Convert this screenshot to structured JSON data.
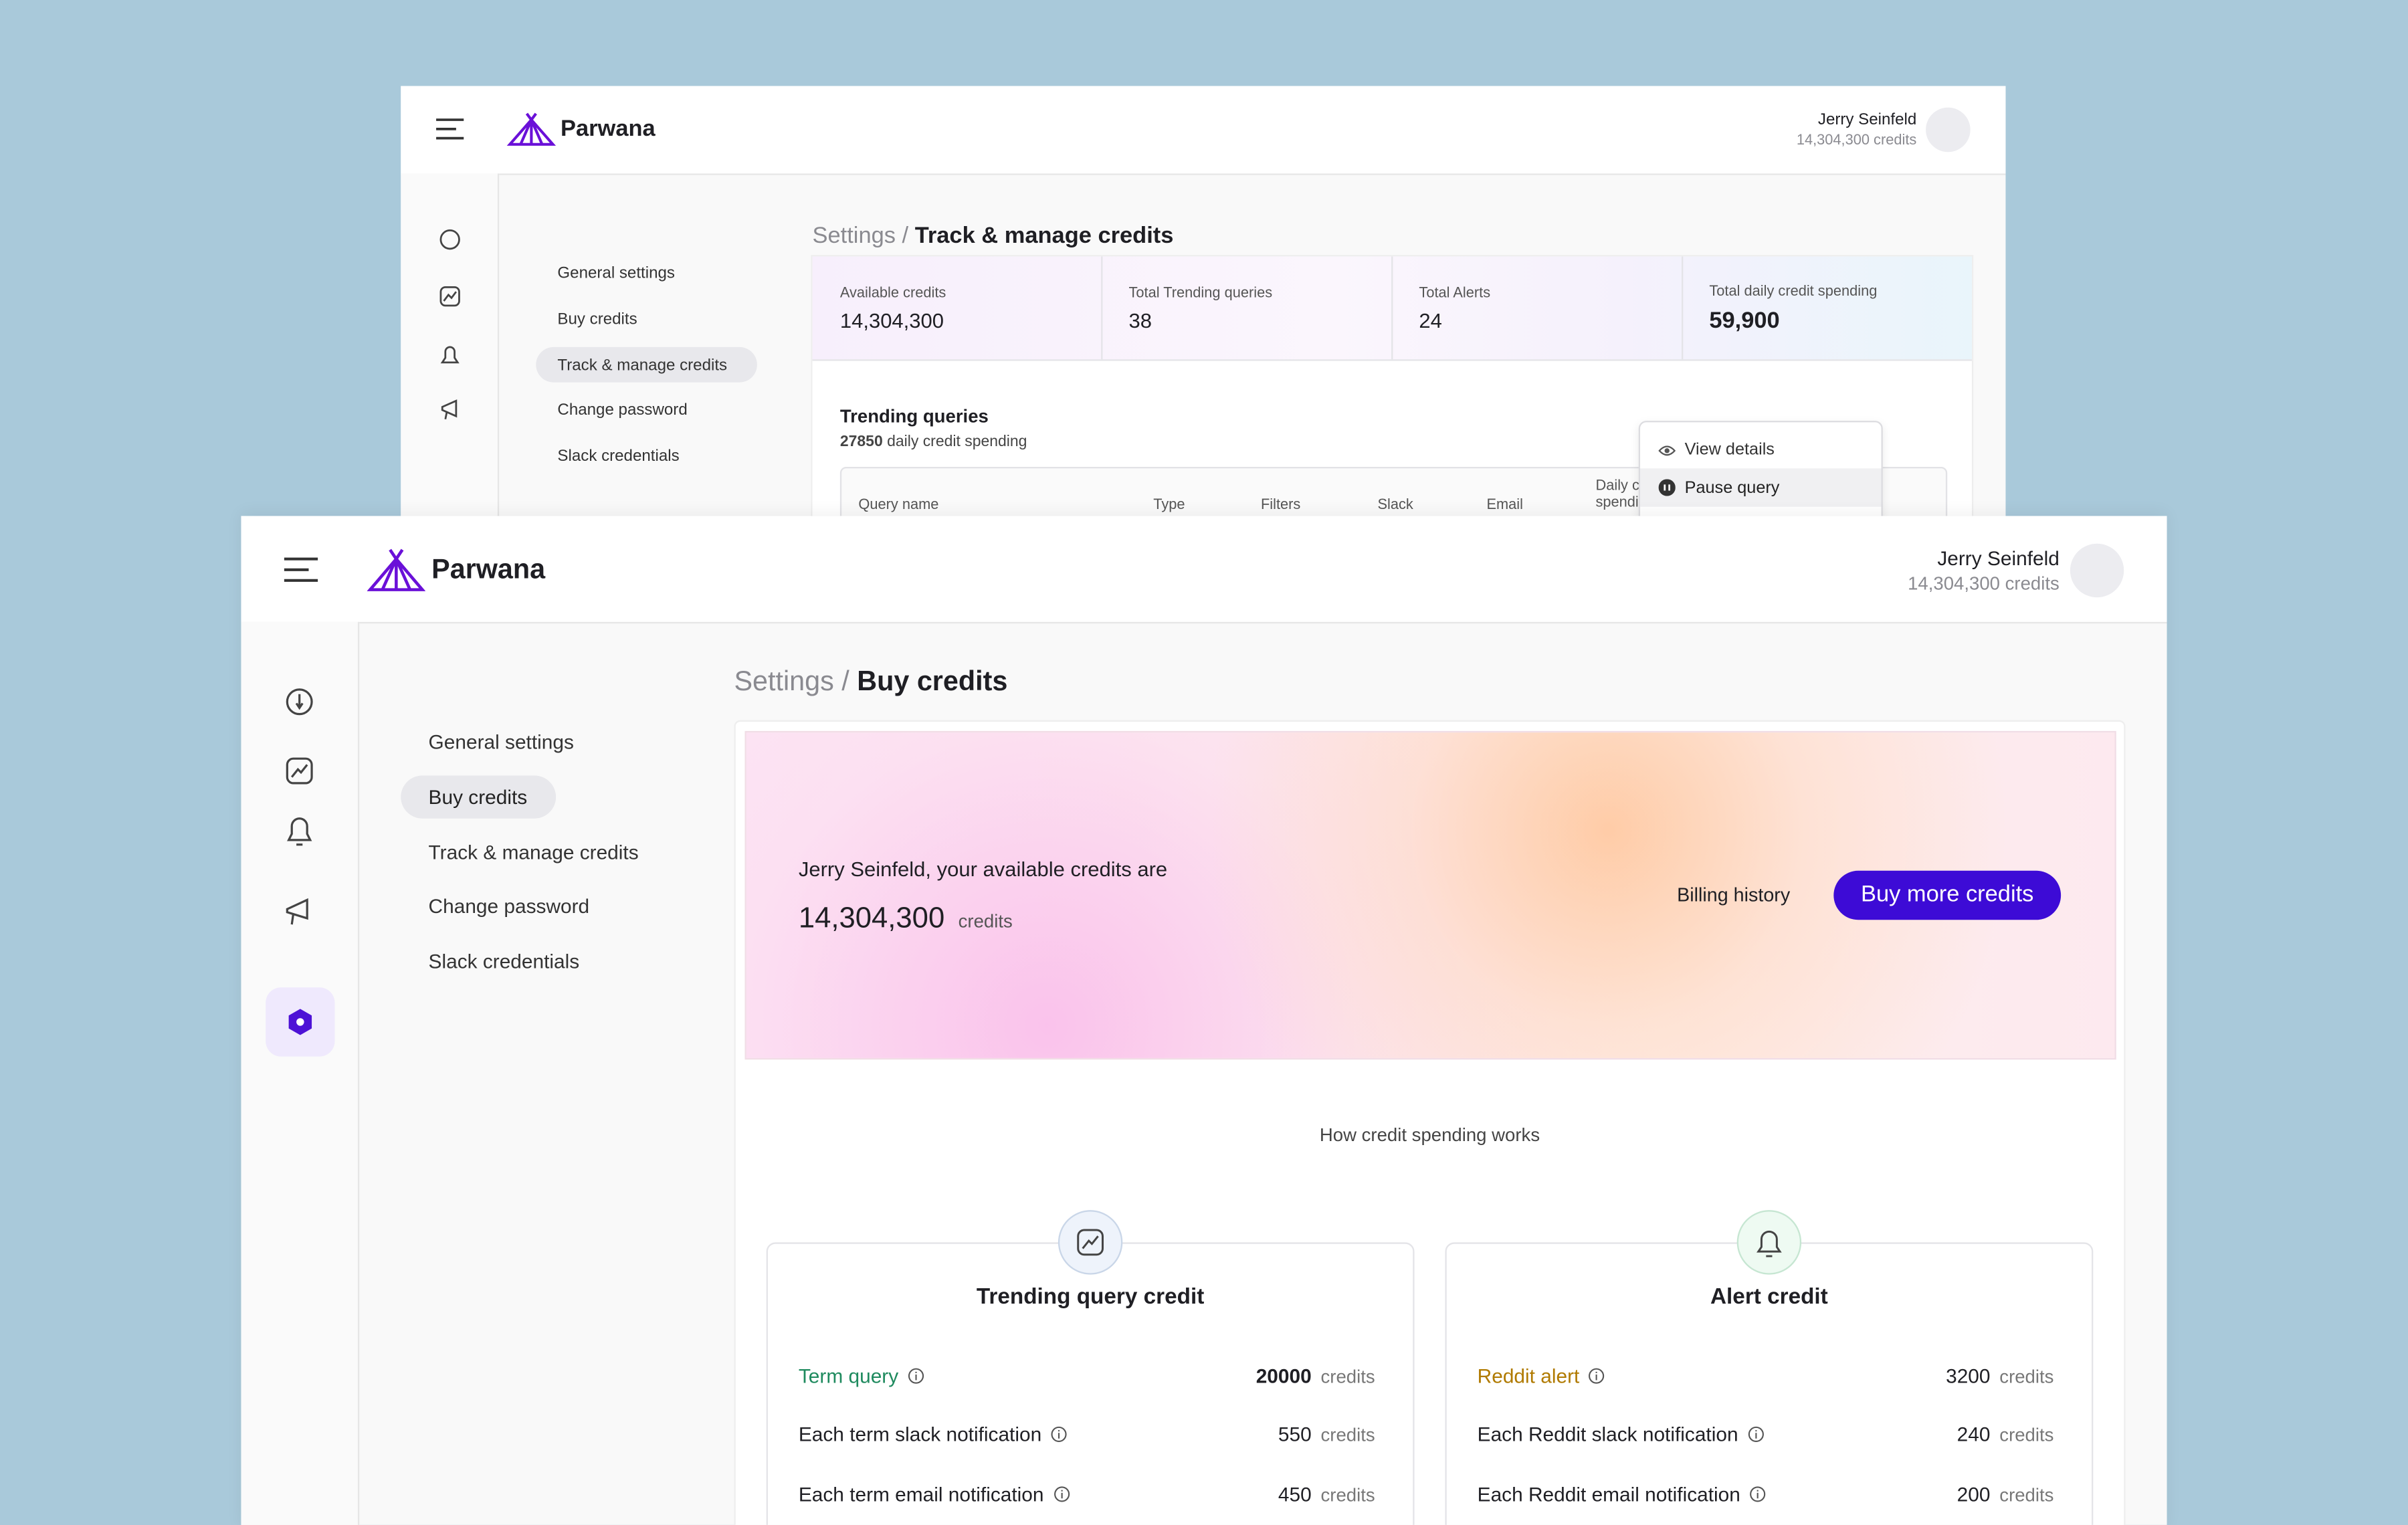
{
  "back_window": {
    "brand": "Parwana",
    "user": {
      "name": "Jerry Seinfeld",
      "credits": "14,304,300 credits"
    },
    "breadcrumb": {
      "parent": "Settings /",
      "current": "Track & manage credits"
    },
    "settings_nav": [
      "General settings",
      "Buy credits",
      "Track & manage credits",
      "Change password",
      "Slack credentials"
    ],
    "stats": [
      {
        "label": "Available credits",
        "value": "14,304,300"
      },
      {
        "label": "Total Trending queries",
        "value": "38"
      },
      {
        "label": "Total Alerts",
        "value": "24"
      },
      {
        "label": "Total daily credit spending",
        "value": "59,900"
      }
    ],
    "trending": {
      "title": "Trending queries",
      "spending_value": "27850",
      "spending_label": "daily credit spending"
    },
    "table_headers": [
      "Query name",
      "Type",
      "Filters",
      "Slack",
      "Email",
      "Daily credit spending"
    ],
    "menu": [
      "View details",
      "Pause query"
    ]
  },
  "front_window": {
    "brand": "Parwana",
    "user": {
      "name": "Jerry Seinfeld",
      "credits": "14,304,300 credits"
    },
    "breadcrumb": {
      "parent": "Settings /",
      "current": "Buy credits"
    },
    "settings_nav": [
      "General settings",
      "Buy credits",
      "Track & manage credits",
      "Change password",
      "Slack credentials"
    ],
    "hero": {
      "greeting": "Jerry Seinfeld, your available credits are",
      "credits": "14,304,300",
      "unit": "credits",
      "billing_link": "Billing history",
      "buy_button": "Buy more credits"
    },
    "section_title": "How credit spending works",
    "cards": [
      {
        "title": "Trending query credit",
        "rows": [
          {
            "label": "Term query",
            "value": "20000",
            "unit": "credits"
          },
          {
            "label": "Each term slack notification",
            "value": "550",
            "unit": "credits"
          },
          {
            "label": "Each term email notification",
            "value": "450",
            "unit": "credits"
          }
        ]
      },
      {
        "title": "Alert credit",
        "rows": [
          {
            "label": "Reddit alert",
            "value": "3200",
            "unit": "credits"
          },
          {
            "label": "Each Reddit slack notification",
            "value": "240",
            "unit": "credits"
          },
          {
            "label": "Each Reddit email notification",
            "value": "200",
            "unit": "credits"
          }
        ]
      }
    ]
  }
}
